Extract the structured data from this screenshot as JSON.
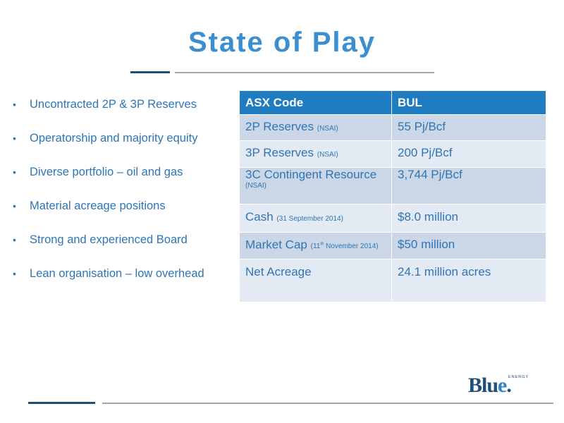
{
  "slide": {
    "title": "State of Play",
    "bullets": [
      "Uncontracted 2P & 3P Reserves",
      "Operatorship and majority equity",
      "Diverse portfolio – oil and gas",
      "Material acreage positions",
      "Strong and  experienced Board",
      "Lean organisation – low overhead"
    ],
    "bullet_glyph": "•"
  },
  "table": {
    "header": {
      "label": "ASX Code",
      "value": "BUL"
    },
    "rows": [
      {
        "label": "2P Reserves",
        "note": "(NSAI)",
        "value": "55 Pj/Bcf"
      },
      {
        "label": "3P Reserves",
        "note": "(NSAI)",
        "value": "200 Pj/Bcf"
      },
      {
        "label": "3C Contingent Resource",
        "note": "(NSAI)",
        "value": "3,744 Pj/Bcf"
      },
      {
        "label": "Cash",
        "note": "(31 September 2014)",
        "value": "$8.0 million"
      },
      {
        "label": "Market Cap",
        "note_pre": "(11",
        "note_sup": "th",
        "note_post": " November 2014)",
        "value": "$50 million"
      },
      {
        "label": "Net Acreage",
        "value": "24.1 million acres"
      }
    ]
  },
  "logo": {
    "text_main": "Blu",
    "text_e": "e",
    "text_dot": ".",
    "energy": "ENERGY"
  },
  "colors": {
    "title": "#3b8fd0",
    "text_blue": "#2e75b6",
    "header_bg": "#1f7cc0",
    "row_dark": "#cbd7e7",
    "row_light": "#e4eaf4",
    "navy": "#1f4e79",
    "grey_rule": "#a6a6a6"
  }
}
